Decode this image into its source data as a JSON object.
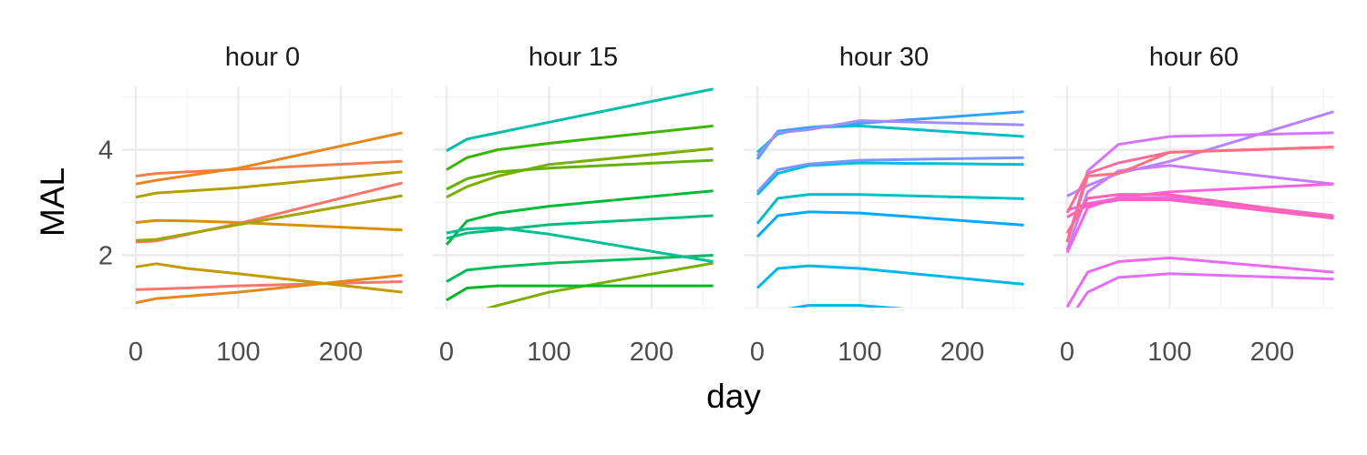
{
  "chart_data": {
    "type": "line",
    "xlabel": "day",
    "ylabel": "MAL",
    "xlim": [
      -10,
      270
    ],
    "ylim": [
      0.9,
      5.15
    ],
    "xticks": [
      0,
      100,
      200
    ],
    "yticks": [
      2,
      4
    ],
    "grid": true,
    "legend": "none",
    "panels": [
      {
        "title": "hour 0",
        "series": [
          {
            "color": "#F8766D",
            "x": [
              0,
              20,
              50,
              100,
              260
            ],
            "y": [
              1.35,
              1.36,
              1.38,
              1.42,
              1.5
            ]
          },
          {
            "color": "#F8766D",
            "x": [
              0,
              20,
              100,
              260
            ],
            "y": [
              2.25,
              2.27,
              2.6,
              3.37
            ]
          },
          {
            "color": "#F07F4C",
            "x": [
              0,
              20,
              100,
              260
            ],
            "y": [
              3.5,
              3.55,
              3.63,
              3.78
            ]
          },
          {
            "color": "#E7861B",
            "x": [
              0,
              20,
              100,
              260
            ],
            "y": [
              1.1,
              1.18,
              1.3,
              1.62
            ]
          },
          {
            "color": "#E7861B",
            "x": [
              0,
              20,
              100,
              260
            ],
            "y": [
              3.35,
              3.42,
              3.65,
              4.32
            ]
          },
          {
            "color": "#D89000",
            "x": [
              0,
              20,
              50,
              100,
              260
            ],
            "y": [
              2.62,
              2.66,
              2.65,
              2.62,
              2.48
            ]
          },
          {
            "color": "#C49A00",
            "x": [
              0,
              20,
              50,
              100,
              260
            ],
            "y": [
              1.78,
              1.84,
              1.75,
              1.65,
              1.3
            ]
          },
          {
            "color": "#B3A000",
            "x": [
              0,
              20,
              100,
              260
            ],
            "y": [
              3.1,
              3.18,
              3.28,
              3.58
            ]
          },
          {
            "color": "#A3A500",
            "x": [
              0,
              20,
              100,
              260
            ],
            "y": [
              2.28,
              2.3,
              2.58,
              3.13
            ]
          }
        ]
      },
      {
        "title": "hour 15",
        "series": [
          {
            "color": "#7CAE00",
            "x": [
              0,
              20,
              50,
              100,
              260
            ],
            "y": [
              0.85,
              0.88,
              1.05,
              1.3,
              1.85
            ]
          },
          {
            "color": "#7CAE00",
            "x": [
              0,
              20,
              50,
              100,
              260
            ],
            "y": [
              3.1,
              3.3,
              3.5,
              3.72,
              4.02
            ]
          },
          {
            "color": "#64B200",
            "x": [
              0,
              20,
              50,
              100,
              260
            ],
            "y": [
              3.25,
              3.45,
              3.58,
              3.65,
              3.8
            ]
          },
          {
            "color": "#39B600",
            "x": [
              0,
              20,
              50,
              100,
              260
            ],
            "y": [
              3.62,
              3.85,
              4.0,
              4.12,
              4.45
            ]
          },
          {
            "color": "#00B81F",
            "x": [
              0,
              20,
              50,
              100,
              260
            ],
            "y": [
              1.15,
              1.38,
              1.42,
              1.42,
              1.42
            ]
          },
          {
            "color": "#00BA38",
            "x": [
              0,
              20,
              50,
              100,
              260
            ],
            "y": [
              2.2,
              2.65,
              2.8,
              2.93,
              3.22
            ]
          },
          {
            "color": "#00BC59",
            "x": [
              0,
              20,
              50,
              100,
              260
            ],
            "y": [
              1.5,
              1.72,
              1.78,
              1.85,
              2.0
            ]
          },
          {
            "color": "#00BD7C",
            "x": [
              0,
              20,
              50,
              100,
              260
            ],
            "y": [
              2.32,
              2.42,
              2.48,
              2.58,
              2.75
            ]
          },
          {
            "color": "#00BE96",
            "x": [
              0,
              20,
              50,
              100,
              260
            ],
            "y": [
              2.42,
              2.5,
              2.52,
              2.4,
              1.88
            ]
          },
          {
            "color": "#00BFA8",
            "x": [
              0,
              20,
              50,
              100,
              260
            ],
            "y": [
              3.98,
              4.2,
              4.32,
              4.52,
              5.15
            ]
          }
        ]
      },
      {
        "title": "hour 30",
        "series": [
          {
            "color": "#00BFC4",
            "x": [
              0,
              20,
              50,
              100,
              260
            ],
            "y": [
              2.6,
              3.08,
              3.15,
              3.15,
              3.07
            ]
          },
          {
            "color": "#00BFC4",
            "x": [
              0,
              20,
              50,
              100,
              260
            ],
            "y": [
              3.95,
              4.3,
              4.42,
              4.45,
              4.25
            ]
          },
          {
            "color": "#00BCDB",
            "x": [
              0,
              20,
              50,
              100,
              260
            ],
            "y": [
              3.15,
              3.55,
              3.7,
              3.75,
              3.72
            ]
          },
          {
            "color": "#00B8E7",
            "x": [
              0,
              20,
              50,
              100,
              260
            ],
            "y": [
              1.38,
              1.75,
              1.8,
              1.75,
              1.45
            ]
          },
          {
            "color": "#00B4EF",
            "x": [
              0,
              20,
              50,
              100,
              260
            ],
            "y": [
              0.72,
              0.95,
              1.05,
              1.05,
              0.8
            ]
          },
          {
            "color": "#00A9FF",
            "x": [
              0,
              20,
              50,
              100,
              260
            ],
            "y": [
              2.35,
              2.75,
              2.82,
              2.8,
              2.57
            ]
          },
          {
            "color": "#35A2FF",
            "x": [
              0,
              20,
              50,
              100,
              260
            ],
            "y": [
              3.82,
              4.35,
              4.42,
              4.5,
              4.72
            ]
          },
          {
            "color": "#7997FF",
            "x": [
              0,
              20,
              50,
              100,
              260
            ],
            "y": [
              3.2,
              3.62,
              3.73,
              3.8,
              3.85
            ]
          },
          {
            "color": "#9F8CFF",
            "x": [
              0,
              20,
              50,
              100,
              260
            ],
            "y": [
              3.88,
              4.32,
              4.38,
              4.55,
              4.47
            ]
          }
        ]
      },
      {
        "title": "hour 60",
        "series": [
          {
            "color": "#B983FF",
            "x": [
              0,
              20,
              50,
              100,
              260
            ],
            "y": [
              3.12,
              3.32,
              3.55,
              3.78,
              4.72
            ]
          },
          {
            "color": "#C77CFF",
            "x": [
              0,
              20,
              50,
              100,
              260
            ],
            "y": [
              2.1,
              3.2,
              3.6,
              3.7,
              3.35
            ]
          },
          {
            "color": "#D575FE",
            "x": [
              0,
              20,
              50,
              100,
              260
            ],
            "y": [
              2.25,
              3.6,
              4.1,
              4.25,
              4.32
            ]
          },
          {
            "color": "#E16FF8",
            "x": [
              0,
              20,
              50,
              100,
              260
            ],
            "y": [
              0.72,
              1.3,
              1.58,
              1.65,
              1.55
            ]
          },
          {
            "color": "#EA6AF1",
            "x": [
              0,
              20,
              50,
              100,
              260
            ],
            "y": [
              1.02,
              1.68,
              1.88,
              1.95,
              1.68
            ]
          },
          {
            "color": "#F265E7",
            "x": [
              0,
              20,
              50,
              100,
              260
            ],
            "y": [
              2.85,
              2.98,
              3.08,
              3.1,
              2.75
            ]
          },
          {
            "color": "#F863DF",
            "x": [
              0,
              20,
              50,
              100,
              260
            ],
            "y": [
              2.05,
              2.9,
              3.1,
              3.2,
              3.35
            ]
          },
          {
            "color": "#FF61C3",
            "x": [
              0,
              20,
              50,
              100,
              260
            ],
            "y": [
              2.72,
              2.95,
              3.05,
              3.05,
              2.7
            ]
          },
          {
            "color": "#FF64B0",
            "x": [
              0,
              20,
              50,
              100,
              260
            ],
            "y": [
              2.42,
              3.08,
              3.15,
              3.15,
              2.72
            ]
          },
          {
            "color": "#FF699C",
            "x": [
              0,
              20,
              50,
              100,
              260
            ],
            "y": [
              2.8,
              3.55,
              3.75,
              3.95,
              4.05
            ]
          },
          {
            "color": "#FC717F",
            "x": [
              0,
              20,
              50,
              100,
              260
            ],
            "y": [
              2.25,
              3.5,
              3.55,
              3.95,
              4.05
            ]
          }
        ]
      }
    ]
  }
}
